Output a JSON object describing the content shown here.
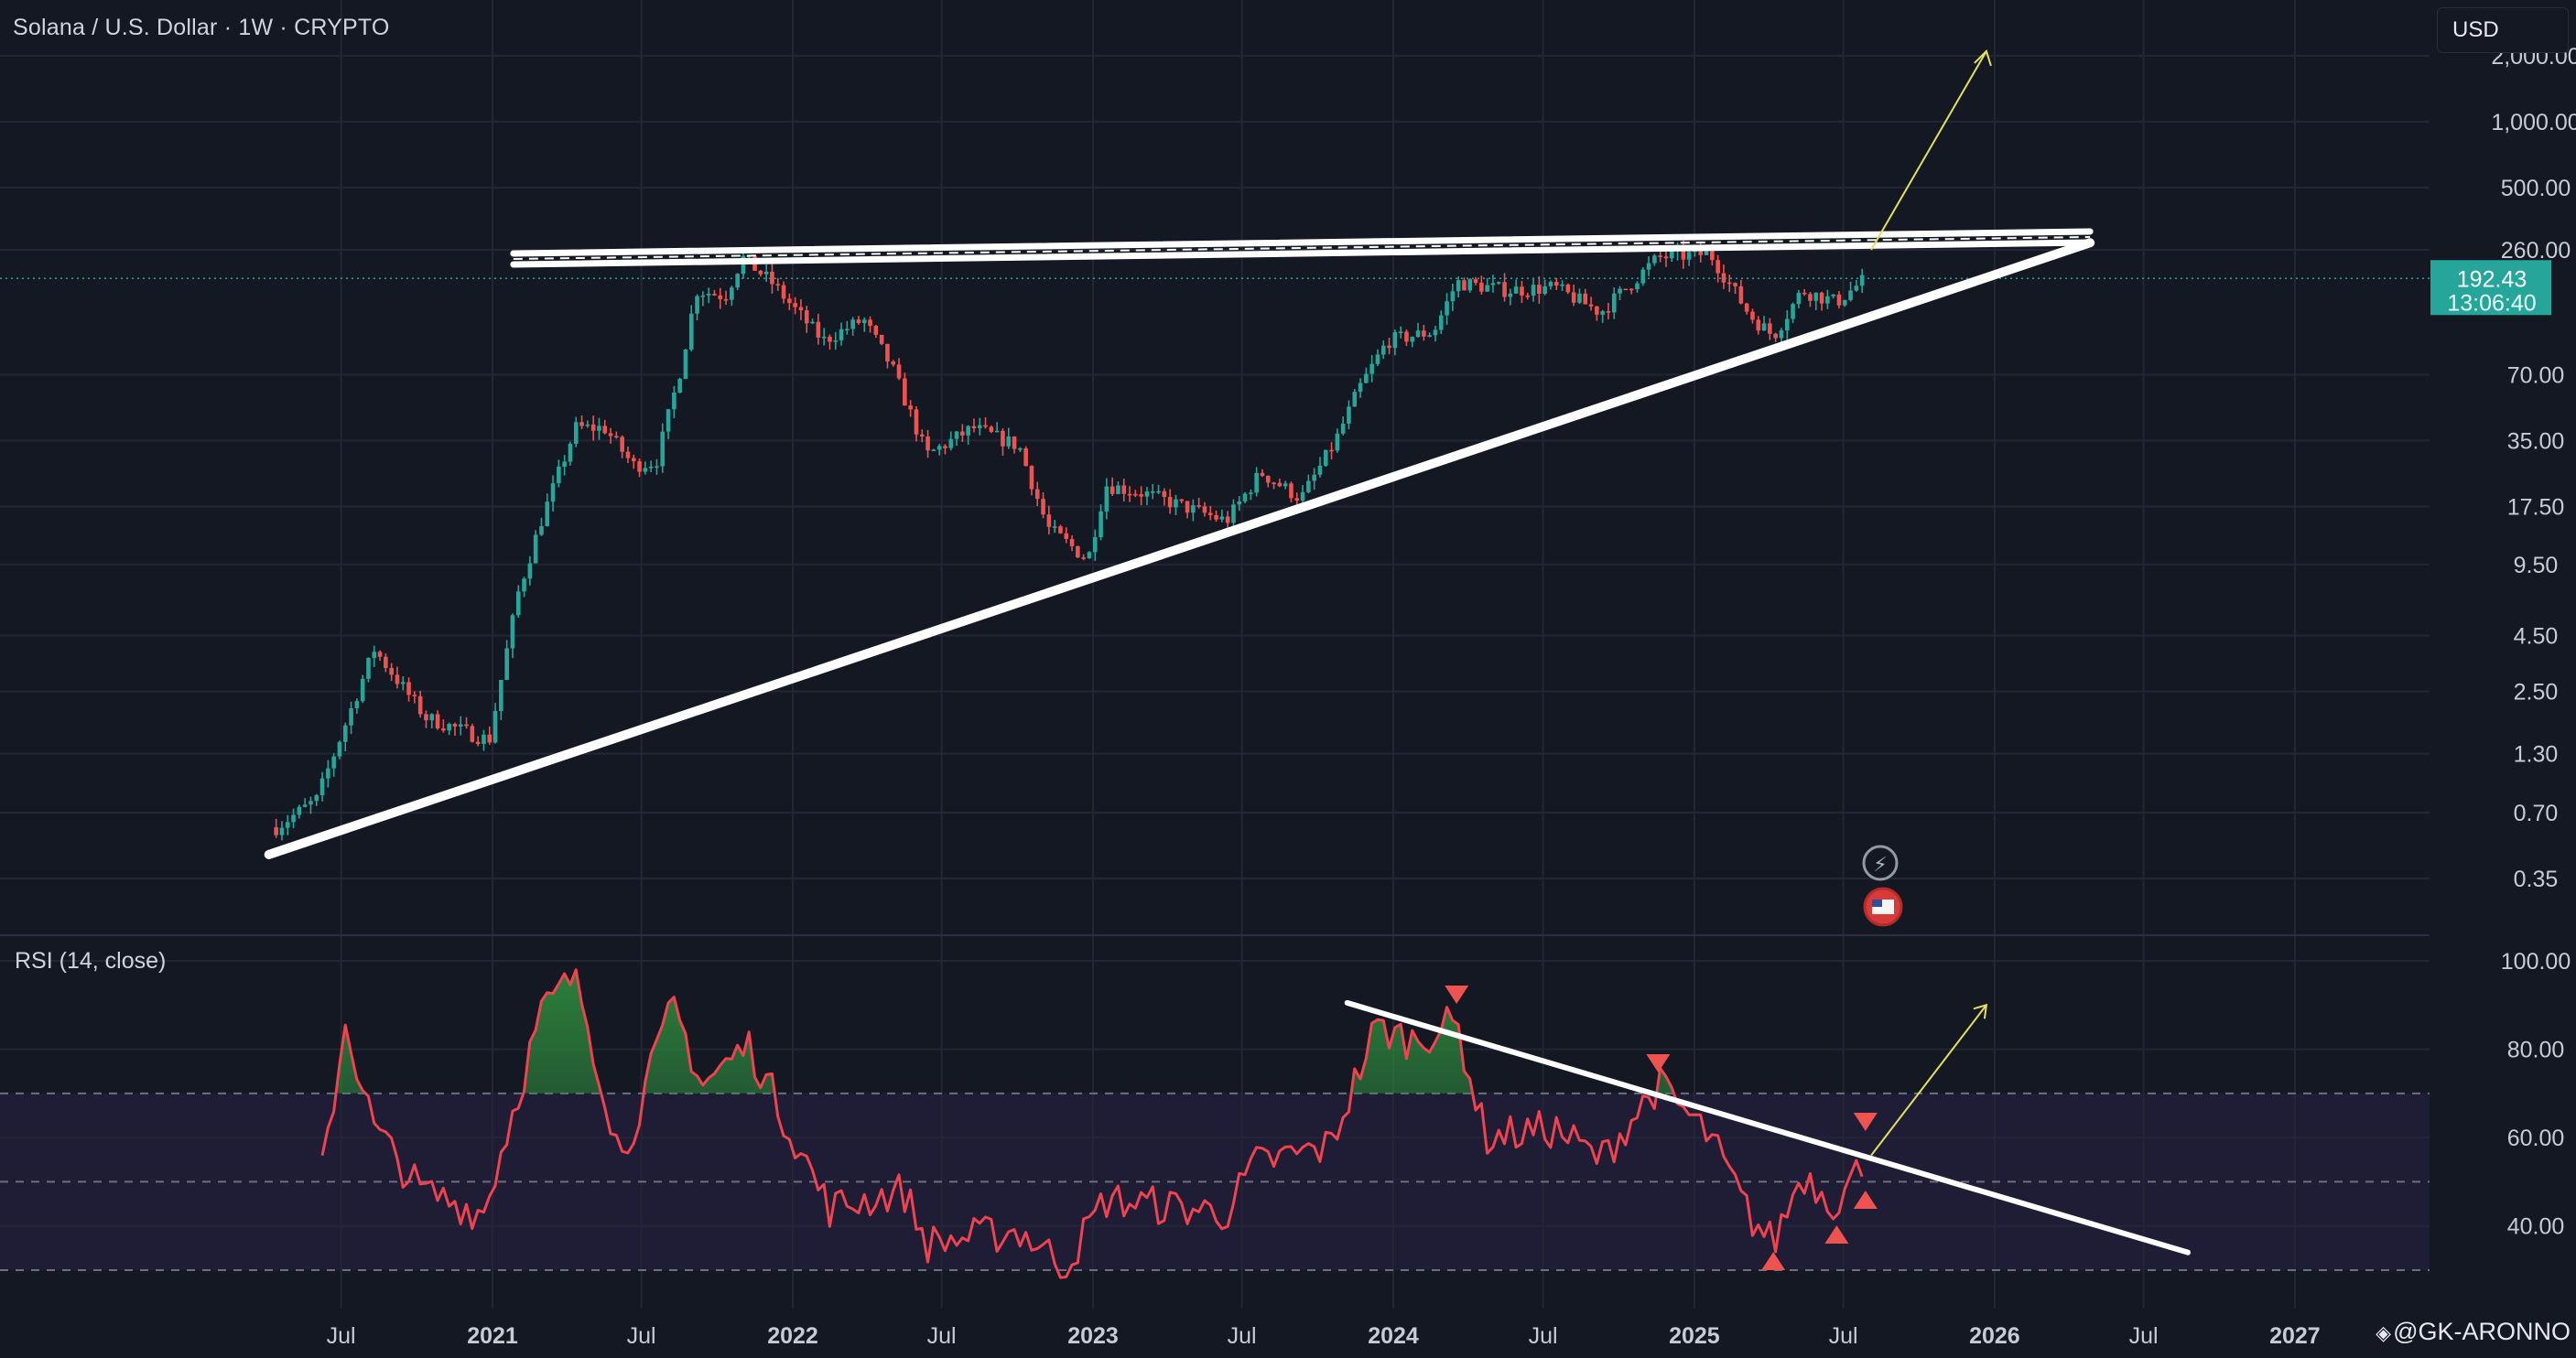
{
  "header": {
    "title": "Solana / U.S. Dollar · 1W · CRYPTO",
    "currency": "USD"
  },
  "price_badge": {
    "price": "192.43",
    "countdown": "13:06:40"
  },
  "rsi_panel": {
    "title": "RSI (14, close)"
  },
  "watermark": "@GK-ARONNO",
  "colors": {
    "background": "#141823",
    "up": "#26a69a",
    "down": "#ef5350",
    "rsi_line": "#f0434f",
    "trendline": "#ffffff",
    "projection_arrow": "#e4e05c",
    "rsi_band": "#1f1c35"
  },
  "chart_data": [
    {
      "type": "candlestick",
      "title": "Solana / U.S. Dollar · 1W · CRYPTO",
      "scale": "log",
      "price_axis_ticks": [
        "0.35",
        "0.70",
        "1.30",
        "2.50",
        "4.50",
        "9.50",
        "17.50",
        "35.00",
        "70.00",
        "260.00",
        "500.00",
        "1,000.00",
        "2,000.00"
      ],
      "time_axis_ticks": [
        "Jul",
        "2021",
        "Jul",
        "2022",
        "Jul",
        "2023",
        "Jul",
        "2024",
        "Jul",
        "2025",
        "Jul",
        "2026",
        "Jul",
        "2027"
      ],
      "last_price": 192.43,
      "approx_weekly_closes": [
        {
          "date": "2020-04-13",
          "close": 0.6
        },
        {
          "date": "2020-06-01",
          "close": 0.8
        },
        {
          "date": "2020-08-10",
          "close": 3.9
        },
        {
          "date": "2020-10-12",
          "close": 1.9
        },
        {
          "date": "2020-12-28",
          "close": 1.5
        },
        {
          "date": "2021-02-01",
          "close": 7
        },
        {
          "date": "2021-03-01",
          "close": 15
        },
        {
          "date": "2021-04-12",
          "close": 40
        },
        {
          "date": "2021-05-17",
          "close": 40
        },
        {
          "date": "2021-06-21",
          "close": 27
        },
        {
          "date": "2021-07-19",
          "close": 28
        },
        {
          "date": "2021-08-16",
          "close": 70
        },
        {
          "date": "2021-09-06",
          "close": 170
        },
        {
          "date": "2021-10-11",
          "close": 160
        },
        {
          "date": "2021-11-01",
          "close": 240
        },
        {
          "date": "2021-12-06",
          "close": 185
        },
        {
          "date": "2022-01-03",
          "close": 140
        },
        {
          "date": "2022-02-07",
          "close": 100
        },
        {
          "date": "2022-03-28",
          "close": 125
        },
        {
          "date": "2022-05-02",
          "close": 75
        },
        {
          "date": "2022-06-13",
          "close": 30
        },
        {
          "date": "2022-08-08",
          "close": 40
        },
        {
          "date": "2022-10-03",
          "close": 33
        },
        {
          "date": "2022-11-07",
          "close": 14
        },
        {
          "date": "2022-12-26",
          "close": 10
        },
        {
          "date": "2023-01-16",
          "close": 22
        },
        {
          "date": "2023-03-06",
          "close": 20
        },
        {
          "date": "2023-06-12",
          "close": 15
        },
        {
          "date": "2023-07-24",
          "close": 25
        },
        {
          "date": "2023-09-11",
          "close": 19
        },
        {
          "date": "2023-10-23",
          "close": 35
        },
        {
          "date": "2023-11-20",
          "close": 60
        },
        {
          "date": "2023-12-25",
          "close": 100
        },
        {
          "date": "2024-02-19",
          "close": 110
        },
        {
          "date": "2024-03-18",
          "close": 185
        },
        {
          "date": "2024-05-20",
          "close": 170
        },
        {
          "date": "2024-07-15",
          "close": 175
        },
        {
          "date": "2024-09-09",
          "close": 135
        },
        {
          "date": "2024-11-18",
          "close": 240
        },
        {
          "date": "2025-01-20",
          "close": 250
        },
        {
          "date": "2025-03-10",
          "close": 130
        },
        {
          "date": "2025-04-07",
          "close": 105
        },
        {
          "date": "2025-05-12",
          "close": 170
        },
        {
          "date": "2025-06-23",
          "close": 150
        },
        {
          "date": "2025-07-28",
          "close": 192.43
        }
      ],
      "annotations": [
        {
          "kind": "horizontal resistance line",
          "from": "2021-09-06",
          "to": "2026-04-27",
          "price": 260
        },
        {
          "kind": "ascending support line",
          "from": {
            "date": "2020-04-13",
            "price": 0.45
          },
          "to": {
            "date": "2026-04-27",
            "price": 280
          }
        },
        {
          "kind": "projection arrow",
          "from": {
            "date": "2025-08-04",
            "price": 260
          },
          "to": {
            "date": "2025-12-22",
            "price": 2100
          }
        }
      ]
    },
    {
      "type": "line",
      "title": "RSI (14, close)",
      "y_ticks": [
        "40.00",
        "60.00",
        "80.00",
        "100.00"
      ],
      "bands": {
        "upper": 70,
        "middle": 50,
        "lower": 30
      },
      "series": [
        {
          "x": [
            "2020-06-08",
            "2020-07-06",
            "2020-08-10",
            "2020-10-05",
            "2020-12-21",
            "2021-03-01",
            "2021-04-12",
            "2021-06-07",
            "2021-08-09",
            "2021-09-13",
            "2021-11-08",
            "2022-02-14",
            "2022-05-16",
            "2022-06-13",
            "2022-10-03",
            "2022-11-28",
            "2023-01-16",
            "2023-06-12",
            "2023-07-17",
            "2023-10-16",
            "2023-12-11",
            "2024-01-22",
            "2024-03-18",
            "2024-04-22",
            "2024-07-15",
            "2024-09-09",
            "2024-11-18",
            "2025-01-20",
            "2025-03-10",
            "2025-04-07",
            "2025-05-12",
            "2025-06-23",
            "2025-07-28"
          ],
          "y": [
            52,
            86,
            62,
            48,
            43,
            88,
            97,
            55,
            90,
            72,
            81,
            44,
            48,
            36,
            39,
            31,
            46,
            43,
            54,
            58,
            85,
            82,
            86,
            60,
            62,
            55,
            72,
            60,
            42,
            36,
            52,
            45,
            55
          ]
        }
      ],
      "annotations": [
        {
          "kind": "descending trendline",
          "from": {
            "date": "2023-11-06",
            "rsi": 90.5
          },
          "to": {
            "date": "2026-08-24",
            "rsi": 34
          }
        },
        {
          "kind": "projection arrow",
          "from": {
            "date": "2025-08-04",
            "rsi": 56
          },
          "to": {
            "date": "2025-12-22",
            "rsi": 90
          }
        },
        {
          "kind": "bearish markers",
          "dates": [
            "2024-03-18",
            "2024-11-18",
            "2025-07-28"
          ]
        },
        {
          "kind": "bullish markers",
          "dates": [
            "2025-04-07",
            "2025-06-23",
            "2025-07-28"
          ]
        }
      ]
    }
  ]
}
